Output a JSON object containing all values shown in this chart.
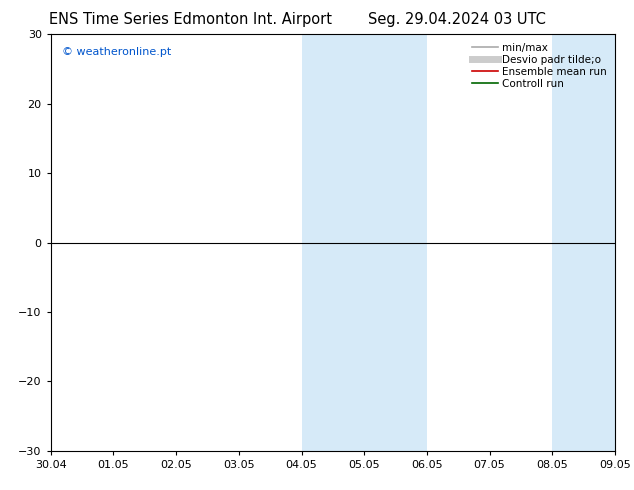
{
  "title_left": "ENS Time Series Edmonton Int. Airport",
  "title_right": "Seg. 29.04.2024 03 UTC",
  "ylim": [
    -30,
    30
  ],
  "yticks": [
    -30,
    -20,
    -10,
    0,
    10,
    20,
    30
  ],
  "xtick_labels": [
    "30.04",
    "01.05",
    "02.05",
    "03.05",
    "04.05",
    "05.05",
    "06.05",
    "07.05",
    "08.05",
    "09.05"
  ],
  "xtick_positions": [
    0,
    1,
    2,
    3,
    4,
    5,
    6,
    7,
    8,
    9
  ],
  "shaded_bands": [
    {
      "x_start": 4.0,
      "x_end": 5.0,
      "color": "#d6eaf8"
    },
    {
      "x_start": 5.0,
      "x_end": 6.0,
      "color": "#d6eaf8"
    },
    {
      "x_start": 8.0,
      "x_end": 8.5,
      "color": "#d6eaf8"
    },
    {
      "x_start": 8.5,
      "x_end": 9.0,
      "color": "#d6eaf8"
    }
  ],
  "hline_y": 0,
  "hline_color": "#000000",
  "watermark": "© weatheronline.pt",
  "watermark_color": "#0055cc",
  "legend_entries": [
    {
      "label": "min/max",
      "color": "#aaaaaa",
      "lw": 1.2,
      "style": "-"
    },
    {
      "label": "Desvio padr tilde;o",
      "color": "#cccccc",
      "lw": 5,
      "style": "-"
    },
    {
      "label": "Ensemble mean run",
      "color": "#cc0000",
      "lw": 1.2,
      "style": "-"
    },
    {
      "label": "Controll run",
      "color": "#006600",
      "lw": 1.2,
      "style": "-"
    }
  ],
  "bg_color": "#ffffff",
  "plot_bg_color": "#ffffff",
  "title_fontsize": 10.5,
  "tick_fontsize": 8,
  "legend_fontsize": 7.5,
  "watermark_fontsize": 8
}
